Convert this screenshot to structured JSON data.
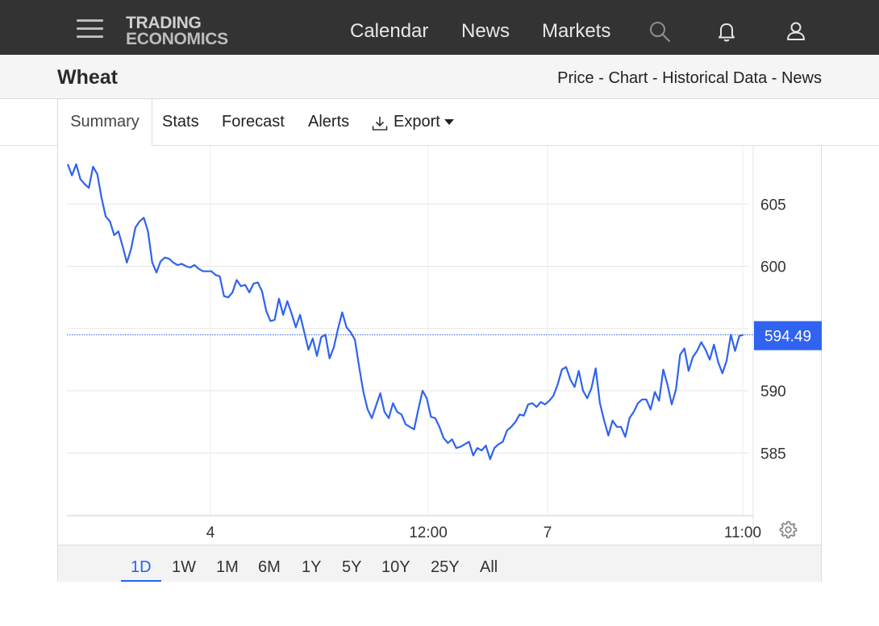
{
  "nav": {
    "logo_line1": "TRADING",
    "logo_line2": "ECONOMICS",
    "links": [
      "Calendar",
      "News",
      "Markets"
    ],
    "icons": [
      "menu-icon",
      "search-icon",
      "bell-icon",
      "user-icon"
    ]
  },
  "header": {
    "title": "Wheat",
    "links": [
      "Price",
      "Chart",
      "Historical Data",
      "News"
    ],
    "separator": " - "
  },
  "tabs": {
    "items": [
      "Summary",
      "Stats",
      "Forecast",
      "Alerts"
    ],
    "export_label": "Export",
    "active": "Summary"
  },
  "ranges": {
    "items": [
      "1D",
      "1W",
      "1M",
      "6M",
      "1Y",
      "5Y",
      "10Y",
      "25Y",
      "All"
    ],
    "active": "1D"
  },
  "chart_data": {
    "type": "line",
    "title": "",
    "xlabel": "",
    "ylabel": "",
    "ylim": [
      581,
      611
    ],
    "yticks": [
      585,
      590,
      595,
      600,
      605,
      610
    ],
    "ytick_labels_visible": [
      "585",
      "590",
      "600",
      "605"
    ],
    "xticks": [
      "4",
      "12:00",
      "7",
      "11:00"
    ],
    "last_value_label": "594.49",
    "last_value": 594.49,
    "grid": true,
    "colors": {
      "line": "#2f63f0",
      "label_bg": "#2f63f0",
      "label_text": "#ffffff",
      "grid": "#e6e6e6"
    },
    "series": [
      {
        "values": [
          608.2,
          607.3,
          608.2,
          607.0,
          606.6,
          606.3,
          608.0,
          607.4,
          605.5,
          604.0,
          603.6,
          602.5,
          602.8,
          601.6,
          600.3,
          601.4,
          603.1,
          603.6,
          603.9,
          602.8,
          600.3,
          599.5,
          600.4,
          600.7,
          600.6,
          600.3,
          600.1,
          600.2,
          600.0,
          599.9,
          600.1,
          599.8,
          599.6,
          599.6,
          599.6,
          599.3,
          599.2,
          597.6,
          597.5,
          597.9,
          598.9,
          598.4,
          598.5,
          597.9,
          598.6,
          598.7,
          598.0,
          596.4,
          595.6,
          595.7,
          597.4,
          596.1,
          597.2,
          596.2,
          595.1,
          596.1,
          594.7,
          593.3,
          594.2,
          592.8,
          594.3,
          594.5,
          592.6,
          593.5,
          595.0,
          596.3,
          595.1,
          594.7,
          594.1,
          591.9,
          589.9,
          588.5,
          587.8,
          588.8,
          589.8,
          588.3,
          587.8,
          589.0,
          588.3,
          588.1,
          587.3,
          587.1,
          586.9,
          588.5,
          590.0,
          589.4,
          587.9,
          587.8,
          587.1,
          586.2,
          585.8,
          586.1,
          585.4,
          585.5,
          585.7,
          585.9,
          584.8,
          585.4,
          585.2,
          585.6,
          584.5,
          585.4,
          585.7,
          585.9,
          586.8,
          587.1,
          587.5,
          588.1,
          588.0,
          588.9,
          589.0,
          588.7,
          589.1,
          588.9,
          589.2,
          589.6,
          590.5,
          591.7,
          591.9,
          590.9,
          590.3,
          591.6,
          590.0,
          589.4,
          590.2,
          591.8,
          589.0,
          587.6,
          586.4,
          587.6,
          587.1,
          587.1,
          586.3,
          587.8,
          588.3,
          589.0,
          589.3,
          589.3,
          588.5,
          589.9,
          589.2,
          591.7,
          590.5,
          588.9,
          590.1,
          592.9,
          593.4,
          591.6,
          592.7,
          593.2,
          593.9,
          593.3,
          592.5,
          593.7,
          592.3,
          591.4,
          592.4,
          594.5,
          593.2,
          594.4,
          594.5
        ]
      }
    ]
  }
}
